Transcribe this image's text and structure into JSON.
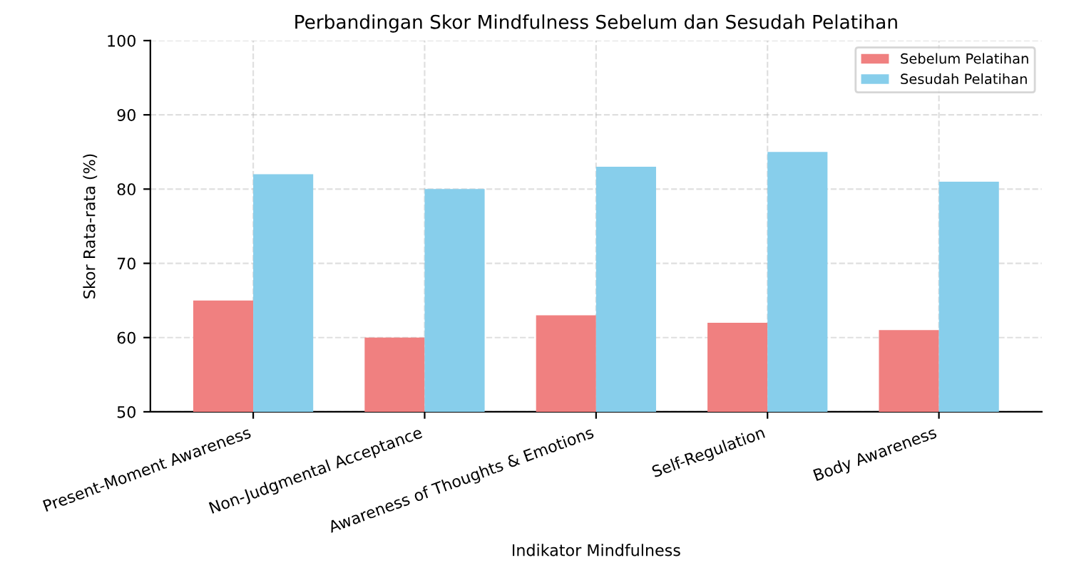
{
  "chart_data": {
    "type": "bar",
    "title": "Perbandingan Skor Mindfulness Sebelum dan Sesudah Pelatihan",
    "xlabel": "Indikator Mindfulness",
    "ylabel": "Skor Rata-rata (%)",
    "categories": [
      "Present-Moment Awareness",
      "Non-Judgmental Acceptance",
      "Awareness of Thoughts & Emotions",
      "Self-Regulation",
      "Body Awareness"
    ],
    "series": [
      {
        "name": "Sebelum Pelatihan",
        "color": "#f08080",
        "values": [
          65,
          60,
          63,
          62,
          61
        ]
      },
      {
        "name": "Sesudah Pelatihan",
        "color": "#87ceeb",
        "values": [
          82,
          80,
          83,
          85,
          81
        ]
      }
    ],
    "ylim": [
      50,
      100
    ],
    "yticks": [
      50,
      60,
      70,
      80,
      90,
      100
    ],
    "grid": true,
    "legend": "top right"
  }
}
